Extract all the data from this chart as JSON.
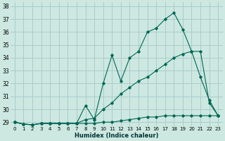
{
  "xlabel": "Humidex (Indice chaleur)",
  "ylabel": "",
  "bg_color": "#cce8e0",
  "grid_color": "#aacccc",
  "line_color": "#006655",
  "xlim": [
    -0.5,
    23.5
  ],
  "ylim": [
    28.7,
    38.3
  ],
  "x_ticks": [
    0,
    1,
    2,
    3,
    4,
    5,
    6,
    7,
    8,
    9,
    10,
    11,
    12,
    13,
    14,
    15,
    16,
    17,
    18,
    19,
    20,
    21,
    22,
    23
  ],
  "y_ticks": [
    29,
    30,
    31,
    32,
    33,
    34,
    35,
    36,
    37,
    38
  ],
  "series": [
    {
      "x": [
        0,
        1,
        2,
        3,
        4,
        5,
        6,
        7,
        8,
        9,
        10,
        11,
        12,
        13,
        14,
        15,
        16,
        17,
        18,
        19,
        20,
        21,
        22,
        23
      ],
      "y": [
        29.0,
        28.85,
        28.8,
        28.9,
        28.9,
        28.9,
        28.9,
        28.9,
        28.9,
        28.9,
        29.0,
        29.0,
        29.1,
        29.2,
        29.3,
        29.4,
        29.4,
        29.5,
        29.5,
        29.5,
        29.5,
        29.5,
        29.5,
        29.5
      ]
    },
    {
      "x": [
        0,
        1,
        2,
        3,
        4,
        5,
        6,
        7,
        8,
        9,
        10,
        11,
        12,
        13,
        14,
        15,
        16,
        17,
        18,
        19,
        20,
        21,
        22,
        23
      ],
      "y": [
        29.0,
        28.85,
        28.8,
        28.9,
        28.9,
        28.9,
        28.9,
        28.9,
        29.2,
        29.3,
        30.0,
        30.5,
        31.2,
        31.7,
        32.2,
        32.5,
        33.0,
        33.5,
        34.0,
        34.3,
        34.5,
        34.5,
        30.5,
        29.5
      ]
    },
    {
      "x": [
        0,
        1,
        2,
        3,
        4,
        5,
        6,
        7,
        8,
        9,
        10,
        11,
        12,
        13,
        14,
        15,
        16,
        17,
        18,
        19,
        20,
        21,
        22,
        23
      ],
      "y": [
        29.0,
        28.85,
        28.8,
        28.9,
        28.9,
        28.9,
        28.9,
        28.9,
        30.3,
        29.2,
        32.0,
        34.2,
        32.2,
        34.0,
        34.5,
        36.0,
        36.3,
        37.0,
        37.5,
        36.2,
        34.5,
        32.5,
        30.7,
        29.5
      ]
    }
  ]
}
